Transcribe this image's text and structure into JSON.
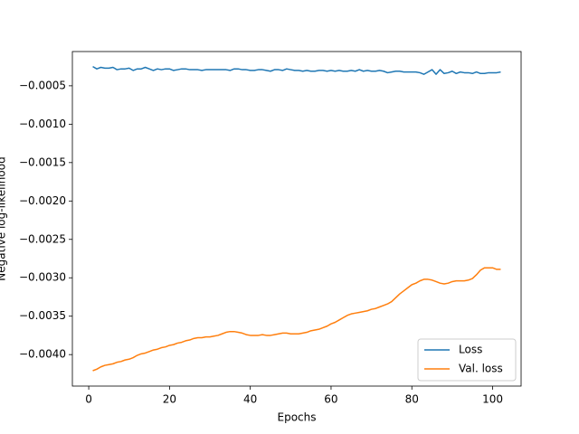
{
  "chart_data": {
    "type": "line",
    "xlabel": "Epochs",
    "ylabel": "Negative log-likelihood",
    "x": [
      1,
      2,
      3,
      4,
      5,
      6,
      7,
      8,
      9,
      10,
      11,
      12,
      13,
      14,
      15,
      16,
      17,
      18,
      19,
      20,
      21,
      22,
      23,
      24,
      25,
      26,
      27,
      28,
      29,
      30,
      31,
      32,
      33,
      34,
      35,
      36,
      37,
      38,
      39,
      40,
      41,
      42,
      43,
      44,
      45,
      46,
      47,
      48,
      49,
      50,
      51,
      52,
      53,
      54,
      55,
      56,
      57,
      58,
      59,
      60,
      61,
      62,
      63,
      64,
      65,
      66,
      67,
      68,
      69,
      70,
      71,
      72,
      73,
      74,
      75,
      76,
      77,
      78,
      79,
      80,
      81,
      82,
      83,
      84,
      85,
      86,
      87,
      88,
      89,
      90,
      91,
      92,
      93,
      94,
      95,
      96,
      97,
      98,
      99,
      100,
      101,
      102
    ],
    "series": [
      {
        "name": "Loss",
        "color": "#1f77b4",
        "values": [
          -0.00025,
          -0.00028,
          -0.00026,
          -0.00027,
          -0.00027,
          -0.00026,
          -0.00029,
          -0.00028,
          -0.00028,
          -0.00027,
          -0.0003,
          -0.00028,
          -0.00028,
          -0.00026,
          -0.00028,
          -0.0003,
          -0.00028,
          -0.00029,
          -0.00028,
          -0.00028,
          -0.0003,
          -0.00029,
          -0.00028,
          -0.00028,
          -0.00029,
          -0.00029,
          -0.00029,
          -0.0003,
          -0.00029,
          -0.00029,
          -0.00029,
          -0.00029,
          -0.00029,
          -0.00029,
          -0.0003,
          -0.00028,
          -0.00028,
          -0.00029,
          -0.00029,
          -0.0003,
          -0.0003,
          -0.00029,
          -0.00029,
          -0.0003,
          -0.00031,
          -0.00029,
          -0.00029,
          -0.0003,
          -0.00028,
          -0.00029,
          -0.0003,
          -0.0003,
          -0.00031,
          -0.0003,
          -0.00031,
          -0.00031,
          -0.0003,
          -0.0003,
          -0.00031,
          -0.0003,
          -0.00031,
          -0.0003,
          -0.00031,
          -0.00031,
          -0.0003,
          -0.00031,
          -0.00029,
          -0.00031,
          -0.0003,
          -0.00031,
          -0.00031,
          -0.0003,
          -0.00031,
          -0.00033,
          -0.00032,
          -0.00031,
          -0.00031,
          -0.00032,
          -0.00032,
          -0.00032,
          -0.00032,
          -0.00033,
          -0.00035,
          -0.00032,
          -0.00029,
          -0.00035,
          -0.00029,
          -0.00034,
          -0.00033,
          -0.00031,
          -0.00034,
          -0.00032,
          -0.00033,
          -0.00033,
          -0.00034,
          -0.00032,
          -0.00034,
          -0.00034,
          -0.00033,
          -0.00033,
          -0.00033,
          -0.00032
        ]
      },
      {
        "name": "Val. loss",
        "color": "#ff7f0e",
        "values": [
          -0.00421,
          -0.00419,
          -0.00416,
          -0.00414,
          -0.00413,
          -0.00412,
          -0.0041,
          -0.00409,
          -0.00407,
          -0.00406,
          -0.00404,
          -0.00401,
          -0.00399,
          -0.00398,
          -0.00396,
          -0.00394,
          -0.00393,
          -0.00391,
          -0.0039,
          -0.00388,
          -0.00387,
          -0.00385,
          -0.00384,
          -0.00382,
          -0.00381,
          -0.00379,
          -0.00378,
          -0.00378,
          -0.00377,
          -0.00377,
          -0.00376,
          -0.00375,
          -0.00373,
          -0.00371,
          -0.0037,
          -0.0037,
          -0.00371,
          -0.00372,
          -0.00374,
          -0.00375,
          -0.00375,
          -0.00375,
          -0.00374,
          -0.00375,
          -0.00375,
          -0.00374,
          -0.00373,
          -0.00372,
          -0.00372,
          -0.00373,
          -0.00373,
          -0.00373,
          -0.00372,
          -0.00371,
          -0.00369,
          -0.00368,
          -0.00367,
          -0.00365,
          -0.00363,
          -0.0036,
          -0.00358,
          -0.00355,
          -0.00352,
          -0.00349,
          -0.00347,
          -0.00346,
          -0.00345,
          -0.00344,
          -0.00343,
          -0.00341,
          -0.0034,
          -0.00338,
          -0.00336,
          -0.00334,
          -0.00331,
          -0.00326,
          -0.00321,
          -0.00317,
          -0.00313,
          -0.00309,
          -0.00307,
          -0.00304,
          -0.00302,
          -0.00302,
          -0.00303,
          -0.00305,
          -0.00307,
          -0.00308,
          -0.00307,
          -0.00305,
          -0.00304,
          -0.00304,
          -0.00304,
          -0.00303,
          -0.00301,
          -0.00296,
          -0.0029,
          -0.00287,
          -0.00287,
          -0.00287,
          -0.00289,
          -0.00289
        ]
      }
    ],
    "xlim": [
      -4.05,
      107.05
    ],
    "xticks": [
      0,
      20,
      40,
      60,
      80,
      100
    ],
    "ylim": [
      -0.00441,
      -5.4e-05
    ],
    "yticks": [
      {
        "value": -0.004,
        "label": "−0.0040"
      },
      {
        "value": -0.0035,
        "label": "−0.0035"
      },
      {
        "value": -0.003,
        "label": "−0.0030"
      },
      {
        "value": -0.0025,
        "label": "−0.0025"
      },
      {
        "value": -0.002,
        "label": "−0.0020"
      },
      {
        "value": -0.0015,
        "label": "−0.0015"
      },
      {
        "value": -0.001,
        "label": "−0.0010"
      },
      {
        "value": -0.0005,
        "label": "−0.0005"
      }
    ],
    "grid": false,
    "legend": "lower right"
  }
}
